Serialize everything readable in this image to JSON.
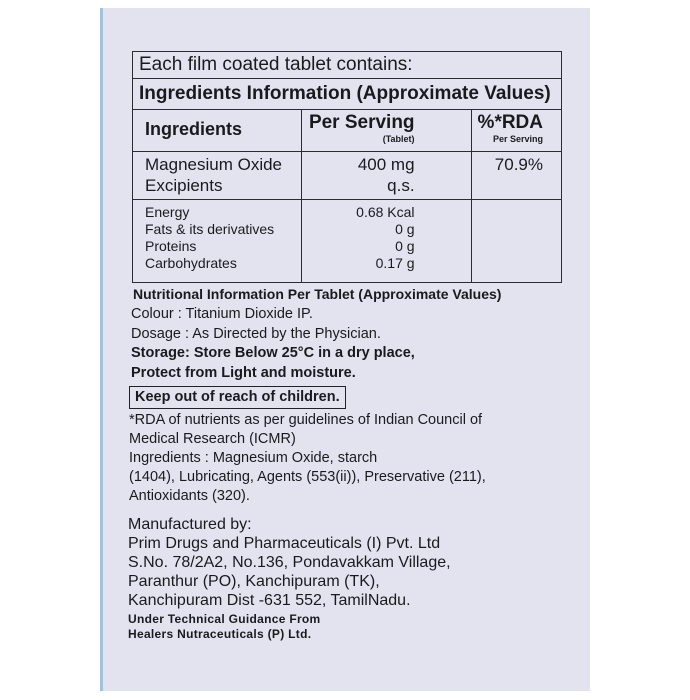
{
  "table": {
    "intro": "Each film coated tablet contains:",
    "title": "Ingredients Information (Approximate Values)",
    "headers": {
      "ingredients": "Ingredients",
      "per_serving": "Per Serving",
      "per_serving_sub": "(Tablet)",
      "rda": "%*RDA",
      "rda_sub": "Per Serving"
    },
    "rows": [
      {
        "name": "Magnesium Oxide",
        "value": "400 mg",
        "rda": "70.9%"
      },
      {
        "name": "Excipients",
        "value": "q.s.",
        "rda": ""
      }
    ],
    "nutrition": [
      {
        "name": "Energy",
        "value": "0.68 Kcal"
      },
      {
        "name": "Fats & its derivatives",
        "value": "0 g"
      },
      {
        "name": "Proteins",
        "value": "0 g"
      },
      {
        "name": "Carbohydrates",
        "value": "0.17 g"
      }
    ]
  },
  "info": {
    "nutrition_heading": "Nutritional Information Per Tablet (Approximate Values)",
    "colour": "Colour : Titanium Dioxide IP.",
    "dosage": "Dosage : As Directed by the Physician.",
    "storage_1": "Storage: Store Below 25°C in a dry place,",
    "storage_2": "Protect from Light and moisture.",
    "warning": "Keep out of reach of children.",
    "rda_note_1": "*RDA of nutrients as per guidelines of Indian Council of",
    "rda_note_2": "Medical Research (ICMR)",
    "ingredients_1": "Ingredients : Magnesium Oxide, starch",
    "ingredients_2": "(1404), Lubricating, Agents (553(ii)), Preservative (211),",
    "ingredients_3": "Antioxidants (320)."
  },
  "manufacturer": {
    "label": "Manufactured by:",
    "name": "Prim Drugs and Pharmaceuticals (I) Pvt. Ltd",
    "address_1": "S.No. 78/2A2, No.136, Pondavakkam Village,",
    "address_2": "Paranthur (PO), Kanchipuram (TK),",
    "address_3": "Kanchipuram Dist -631 552, TamilNadu.",
    "guidance_1": "Under Technical Guidance From",
    "guidance_2": "Healers Nutraceuticals (P) Ltd."
  }
}
